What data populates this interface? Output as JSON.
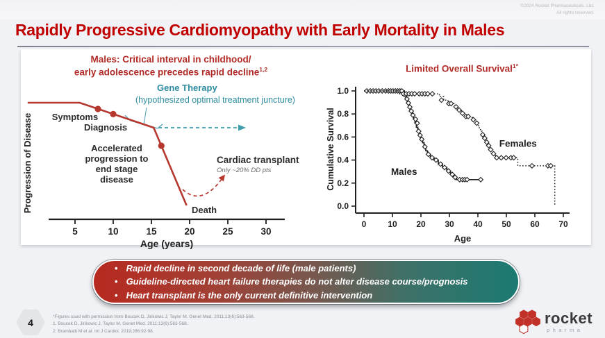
{
  "copyright": {
    "line1": "©2024 Rocket Pharmaceuticals, Ltd.",
    "line2": "All rights reserved."
  },
  "title": "Rapidly Progressive Cardiomyopathy with Early Mortality in Males",
  "chart_data": [
    {
      "type": "line",
      "name": "disease-progression-schematic",
      "title_line1": "Males: Critical interval in childhood/",
      "title_line2": "early adolescence precedes rapid decline",
      "title_sup": "1,2",
      "xlabel": "Age (years)",
      "ylabel": "Progression of Disease",
      "x_ticks": [
        5,
        10,
        15,
        20,
        25,
        30
      ],
      "series": [
        {
          "name": "disease-course",
          "points": [
            [
              -1.2,
              0.84
            ],
            [
              5.6,
              0.84
            ],
            [
              15.3,
              0.66
            ],
            [
              19.6,
              0.1
            ]
          ]
        }
      ],
      "markers": [
        {
          "name": "symptoms-dot",
          "age": 8,
          "progression": 0.795
        },
        {
          "name": "diagnosis-dot",
          "age": 10,
          "progression": 0.758
        },
        {
          "name": "accelerated-dot",
          "age": 16.3,
          "progression": 0.53
        }
      ],
      "annotations": {
        "symptoms": "Symptoms",
        "diagnosis": "Diagnosis",
        "accelerated_lines": [
          "Accelerated",
          "progression to",
          "end stage",
          "disease"
        ],
        "gene_therapy_line1": "Gene Therapy",
        "gene_therapy_line2": "(hypothesized optimal treatment juncture)",
        "death": "Death",
        "cardiac_transplant": "Cardiac transplant",
        "cardiac_transplant_note": "Only ~20% DD pts"
      },
      "colors": {
        "line": "#b5372e",
        "teal": "#2e8ca0",
        "teal_arrow": "#3d9eae",
        "label": "#2b2b2b"
      }
    },
    {
      "type": "line",
      "name": "kaplan-meier-survival",
      "title": "Limited Overall Survival",
      "title_sup": "1*",
      "xlabel": "Age",
      "ylabel": "Cumulative Survival",
      "x_ticks": [
        0,
        10,
        20,
        30,
        40,
        50,
        60,
        70
      ],
      "y_ticks": [
        0.0,
        0.2,
        0.4,
        0.6,
        0.8,
        1.0
      ],
      "xlim": [
        0,
        73
      ],
      "ylim": [
        0,
        1.05
      ],
      "series": [
        {
          "name": "Males",
          "style": "solid",
          "label_pos": [
            9.5,
            0.295
          ],
          "steps": [
            [
              0,
              1
            ],
            [
              13.5,
              1
            ],
            [
              14.2,
              0.965
            ],
            [
              14.8,
              0.93
            ],
            [
              15.3,
              0.895
            ],
            [
              15.8,
              0.86
            ],
            [
              16.3,
              0.825
            ],
            [
              16.9,
              0.79
            ],
            [
              17.4,
              0.755
            ],
            [
              17.9,
              0.72
            ],
            [
              18.4,
              0.685
            ],
            [
              18.9,
              0.65
            ],
            [
              19.4,
              0.615
            ],
            [
              20,
              0.58
            ],
            [
              20.6,
              0.55
            ],
            [
              21.1,
              0.515
            ],
            [
              21.7,
              0.48
            ],
            [
              22.3,
              0.45
            ],
            [
              23.3,
              0.42
            ],
            [
              24.6,
              0.4
            ],
            [
              26.1,
              0.365
            ],
            [
              27.6,
              0.335
            ],
            [
              29.1,
              0.305
            ],
            [
              30.4,
              0.275
            ],
            [
              31.4,
              0.25
            ],
            [
              32.5,
              0.23
            ],
            [
              41,
              0.23
            ]
          ],
          "markers": [
            [
              1,
              1
            ],
            [
              2.2,
              1
            ],
            [
              3.2,
              1
            ],
            [
              4.2,
              1
            ],
            [
              5.2,
              1
            ],
            [
              6.4,
              1
            ],
            [
              7.6,
              1
            ],
            [
              8.6,
              1
            ],
            [
              9.4,
              1
            ],
            [
              10.2,
              1
            ],
            [
              11,
              1
            ],
            [
              11.8,
              1
            ],
            [
              12.6,
              1
            ],
            [
              13.3,
              1
            ],
            [
              14.5,
              0.965
            ],
            [
              15.1,
              0.93
            ],
            [
              15.6,
              0.895
            ],
            [
              16.1,
              0.86
            ],
            [
              16.6,
              0.825
            ],
            [
              17.2,
              0.79
            ],
            [
              18.1,
              0.755
            ],
            [
              18.7,
              0.72
            ],
            [
              19.2,
              0.65
            ],
            [
              19.7,
              0.615
            ],
            [
              20.3,
              0.58
            ],
            [
              21.4,
              0.515
            ],
            [
              22.6,
              0.45
            ],
            [
              23.9,
              0.42
            ],
            [
              25.3,
              0.4
            ],
            [
              26.9,
              0.365
            ],
            [
              28.3,
              0.335
            ],
            [
              29.7,
              0.305
            ],
            [
              31,
              0.275
            ],
            [
              32,
              0.25
            ],
            [
              33.6,
              0.23
            ],
            [
              34.6,
              0.23
            ],
            [
              35.4,
              0.23
            ],
            [
              36.2,
              0.23
            ],
            [
              41,
              0.23
            ]
          ]
        },
        {
          "name": "Females",
          "style": "dotted",
          "label_pos": [
            47.5,
            0.54
          ],
          "steps": [
            [
              0,
              1
            ],
            [
              11,
              1
            ],
            [
              12.5,
              0.975
            ],
            [
              25.5,
              0.975
            ],
            [
              26.5,
              0.95
            ],
            [
              28,
              0.92
            ],
            [
              29.5,
              0.89
            ],
            [
              31,
              0.89
            ],
            [
              32,
              0.862
            ],
            [
              33,
              0.834
            ],
            [
              34.2,
              0.806
            ],
            [
              35.4,
              0.778
            ],
            [
              37,
              0.778
            ],
            [
              38,
              0.75
            ],
            [
              39.2,
              0.72
            ],
            [
              40.2,
              0.68
            ],
            [
              40.9,
              0.65
            ],
            [
              41.5,
              0.62
            ],
            [
              42.2,
              0.59
            ],
            [
              42.9,
              0.555
            ],
            [
              43.5,
              0.525
            ],
            [
              44.2,
              0.49
            ],
            [
              45.2,
              0.455
            ],
            [
              46.2,
              0.42
            ],
            [
              53.5,
              0.42
            ],
            [
              54,
              0.35
            ],
            [
              66.8,
              0.35
            ],
            [
              67,
              0
            ]
          ],
          "markers": [
            [
              13.8,
              0.975
            ],
            [
              14.8,
              0.975
            ],
            [
              15.8,
              0.975
            ],
            [
              16.8,
              0.975
            ],
            [
              17.8,
              0.975
            ],
            [
              19.4,
              0.975
            ],
            [
              20.4,
              0.975
            ],
            [
              21.4,
              0.975
            ],
            [
              22.4,
              0.975
            ],
            [
              24,
              0.975
            ],
            [
              27.2,
              0.92
            ],
            [
              29.8,
              0.89
            ],
            [
              30.6,
              0.89
            ],
            [
              32.3,
              0.862
            ],
            [
              33.4,
              0.834
            ],
            [
              34.6,
              0.806
            ],
            [
              35.8,
              0.778
            ],
            [
              36.6,
              0.778
            ],
            [
              38.4,
              0.75
            ],
            [
              39.6,
              0.72
            ],
            [
              41.7,
              0.62
            ],
            [
              42.4,
              0.59
            ],
            [
              43.1,
              0.555
            ],
            [
              43.8,
              0.525
            ],
            [
              44.5,
              0.49
            ],
            [
              45.5,
              0.455
            ],
            [
              46.6,
              0.42
            ],
            [
              48.2,
              0.42
            ],
            [
              49.9,
              0.42
            ],
            [
              51.6,
              0.42
            ],
            [
              52.6,
              0.42
            ],
            [
              59,
              0.35
            ],
            [
              64.6,
              0.35
            ],
            [
              65.6,
              0.35
            ]
          ]
        }
      ],
      "colors": {
        "line": "#1f1f1f"
      }
    }
  ],
  "summary_box": {
    "bullets": [
      "Rapid decline in second decade of life (male patients)",
      "Guideline-directed heart failure therapies do not alter disease course/prognosis",
      "Heart transplant is the only current definitive intervention"
    ]
  },
  "footer": {
    "page_number": "4",
    "footnotes": [
      "*Figures used with permission from Boucek D, Jirikowic J, Taylor M. Genet Med. 2011;13(6):563-568.",
      "1. Boucek D, Jirikowic J, Taylor M. Genet Med. 2011;13(6):563-568.",
      "2. Brambatti M et al. Int J Cardiol. 2019;286:92-98."
    ],
    "logo": {
      "name": "rocket",
      "sub": "pharma"
    }
  }
}
